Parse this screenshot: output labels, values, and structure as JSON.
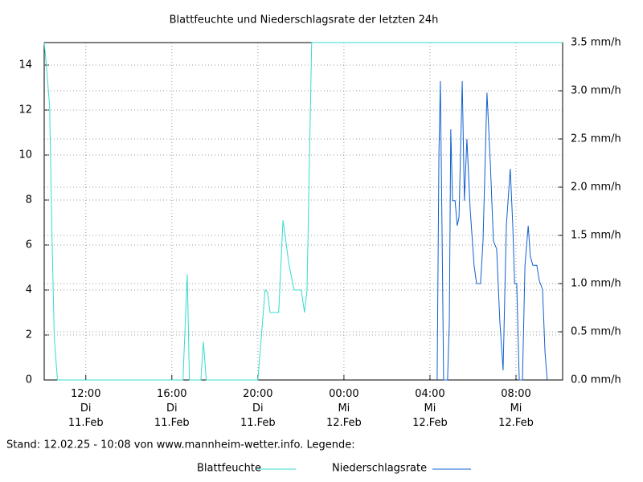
{
  "chart_data": {
    "type": "line",
    "title": "Blattfeuchte und Niederschlagsrate der letzten 24h",
    "footer": "Stand: 12.02.25 - 10:08 von www.mannheim-wetter.info. Legende:",
    "xlim": [
      "11.Feb 10:04",
      "12.Feb 10:10"
    ],
    "xticks": [
      {
        "value": "11.Feb 12:00",
        "label": "12:00\nDi\n11.Feb"
      },
      {
        "value": "11.Feb 16:00",
        "label": "16:00\nDi\n11.Feb"
      },
      {
        "value": "11.Feb 20:00",
        "label": "20:00\nDi\n11.Feb"
      },
      {
        "value": "12.Feb 00:00",
        "label": "00:00\nMi\n12.Feb"
      },
      {
        "value": "12.Feb 04:00",
        "label": "04:00\nMi\n12.Feb"
      },
      {
        "value": "12.Feb 08:00",
        "label": "08:00\nMi\n12.Feb"
      }
    ],
    "ylim": [
      0,
      15
    ],
    "yticks": [
      0,
      2,
      4,
      6,
      8,
      10,
      12,
      14
    ],
    "y2lim": [
      0,
      3.5
    ],
    "y2ticks": [
      {
        "value": 0,
        "label": "0.0 mm/h"
      },
      {
        "value": 0.5,
        "label": "0.5 mm/h"
      },
      {
        "value": 1,
        "label": "1.0 mm/h"
      },
      {
        "value": 1.5,
        "label": "1.5 mm/h"
      },
      {
        "value": 2,
        "label": "2.0 mm/h"
      },
      {
        "value": 2.5,
        "label": "2.5 mm/h"
      },
      {
        "value": 3,
        "label": "3.0 mm/h"
      },
      {
        "value": 3.5,
        "label": "3.5 mm/h"
      }
    ],
    "grid": true,
    "series": [
      {
        "name": "Blattfeuchte",
        "color": "#33dccc",
        "x": [
          "11.Feb 10:04",
          "11.Feb 10:10",
          "11.Feb 10:19",
          "11.Feb 10:26",
          "11.Feb 10:32",
          "11.Feb 10:41",
          "11.Feb 16:31",
          "11.Feb 16:43",
          "11.Feb 16:49",
          "11.Feb 17:21",
          "11.Feb 17:28",
          "11.Feb 17:36",
          "11.Feb 20:00",
          "11.Feb 20:20",
          "11.Feb 20:27",
          "11.Feb 20:34",
          "11.Feb 20:58",
          "11.Feb 21:10",
          "11.Feb 21:27",
          "11.Feb 21:41",
          "11.Feb 22:01",
          "11.Feb 22:10",
          "11.Feb 22:17",
          "11.Feb 22:30",
          "12.Feb 10:10"
        ],
        "values": [
          15,
          14,
          12.2,
          6.2,
          1.9,
          0,
          0,
          4.7,
          0,
          0,
          1.7,
          0,
          0,
          4,
          3.9,
          3,
          3,
          7.1,
          5.1,
          4,
          4,
          3,
          4,
          15,
          15
        ]
      },
      {
        "name": "Niederschlagsrate",
        "color": "#1060d0",
        "axis": "y2",
        "x": [
          "12.Feb 04:20",
          "12.Feb 04:25",
          "12.Feb 04:29",
          "12.Feb 04:34",
          "12.Feb 04:38",
          "12.Feb 04:49",
          "12.Feb 04:54",
          "12.Feb 04:58",
          "12.Feb 05:03",
          "12.Feb 05:10",
          "12.Feb 05:16",
          "12.Feb 05:21",
          "12.Feb 05:30",
          "12.Feb 05:36",
          "12.Feb 05:43",
          "12.Feb 05:52",
          "12.Feb 06:03",
          "12.Feb 06:10",
          "12.Feb 06:21",
          "12.Feb 06:28",
          "12.Feb 06:39",
          "12.Feb 06:48",
          "12.Feb 06:57",
          "12.Feb 07:06",
          "12.Feb 07:15",
          "12.Feb 07:24",
          "12.Feb 07:33",
          "12.Feb 07:44",
          "12.Feb 07:51",
          "12.Feb 07:56",
          "12.Feb 08:02",
          "12.Feb 08:09",
          "12.Feb 08:18",
          "12.Feb 08:25",
          "12.Feb 08:34",
          "12.Feb 08:40",
          "12.Feb 08:47",
          "12.Feb 08:58",
          "12.Feb 09:05",
          "12.Feb 09:14",
          "12.Feb 09:21",
          "12.Feb 09:27"
        ],
        "values": [
          0,
          2.36,
          3.1,
          1.44,
          0,
          0,
          0.6,
          2.6,
          1.86,
          1.86,
          1.6,
          1.69,
          3.1,
          1.86,
          2.5,
          1.78,
          1.19,
          1,
          1,
          1.44,
          2.98,
          2.28,
          1.44,
          1.36,
          0.6,
          0.1,
          1.6,
          2.19,
          1.6,
          1,
          1,
          0,
          0,
          1.19,
          1.6,
          1.28,
          1.19,
          1.19,
          1.03,
          0.94,
          0.28,
          0
        ]
      }
    ]
  }
}
